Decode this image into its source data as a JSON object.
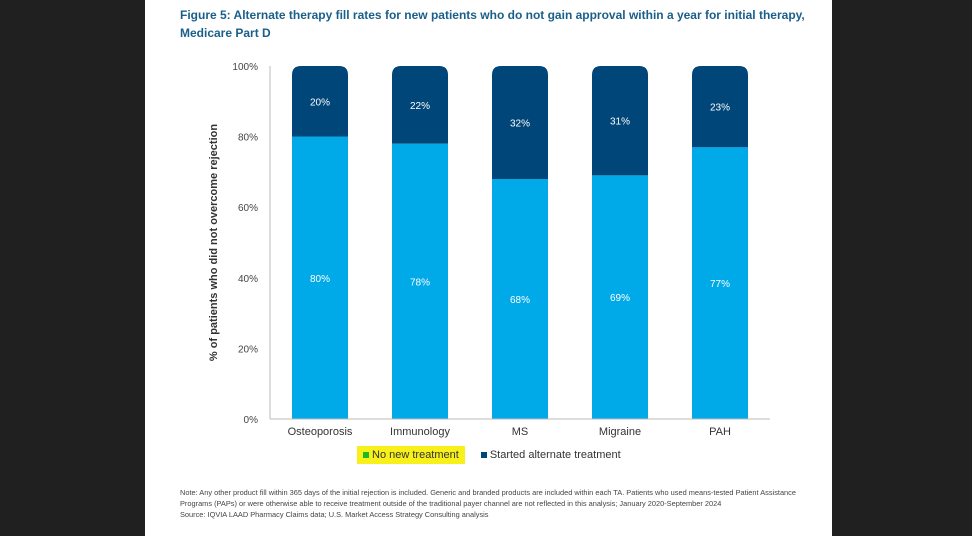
{
  "chart_data": {
    "type": "bar",
    "stacked": true,
    "title": "Figure 5: Alternate therapy fill rates for new patients who do not gain approval within a year for initial therapy, Medicare Part D",
    "xlabel": "",
    "ylabel": "% of patients who did not overcome rejection",
    "ylim": [
      0,
      100
    ],
    "yticks": [
      "0%",
      "20%",
      "40%",
      "60%",
      "80%",
      "100%"
    ],
    "categories": [
      "Osteoporosis",
      "Immunology",
      "MS",
      "Migraine",
      "PAH"
    ],
    "series": [
      {
        "name": "No new treatment",
        "color": "#00a9e8",
        "values": [
          80,
          78,
          68,
          69,
          77
        ],
        "labels": [
          "80%",
          "78%",
          "68%",
          "69%",
          "77%"
        ]
      },
      {
        "name": "Started alternate treatment",
        "color": "#004678",
        "values": [
          20,
          22,
          32,
          31,
          23
        ],
        "labels": [
          "20%",
          "22%",
          "32%",
          "31%",
          "23%"
        ]
      }
    ],
    "legend_position": "bottom",
    "grid": false
  },
  "note": {
    "text": "Note: Any other product fill within 365 days of the initial rejection is included. Generic and branded products are included within each TA. Patients who used means-tested Patient Assistance Programs (PAPs) or were otherwise able to receive treatment outside of the traditional payer channel are not reflected in this analysis; January 2020-September 2024",
    "source": "Source: IQVIA LAAD Pharmacy Claims data; U.S. Market Access Strategy Consulting analysis"
  }
}
